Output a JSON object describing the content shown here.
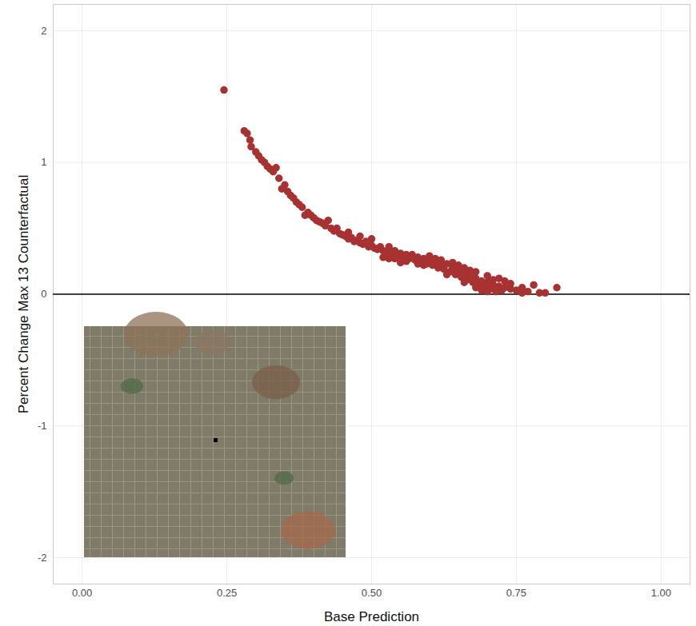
{
  "chart_data": {
    "type": "scatter",
    "x_label": "Base Prediction",
    "y_label": "Percent Change Max 13 Counterfactual",
    "x": [
      0.245,
      0.28,
      0.285,
      0.29,
      0.292,
      0.3,
      0.305,
      0.31,
      0.315,
      0.32,
      0.325,
      0.33,
      0.335,
      0.34,
      0.345,
      0.35,
      0.355,
      0.36,
      0.365,
      0.37,
      0.375,
      0.38,
      0.385,
      0.39,
      0.395,
      0.4,
      0.405,
      0.41,
      0.415,
      0.42,
      0.425,
      0.43,
      0.435,
      0.44,
      0.445,
      0.45,
      0.455,
      0.46,
      0.465,
      0.47,
      0.475,
      0.48,
      0.485,
      0.49,
      0.495,
      0.5,
      0.505,
      0.51,
      0.515,
      0.52,
      0.525,
      0.53,
      0.535,
      0.54,
      0.545,
      0.55,
      0.555,
      0.56,
      0.565,
      0.57,
      0.575,
      0.58,
      0.585,
      0.59,
      0.595,
      0.6,
      0.605,
      0.61,
      0.615,
      0.62,
      0.625,
      0.63,
      0.635,
      0.64,
      0.645,
      0.65,
      0.655,
      0.66,
      0.665,
      0.67,
      0.675,
      0.68,
      0.685,
      0.69,
      0.695,
      0.7,
      0.705,
      0.71,
      0.715,
      0.72,
      0.725,
      0.73,
      0.74,
      0.75,
      0.76,
      0.77,
      0.78,
      0.79,
      0.8,
      0.82,
      0.52,
      0.54,
      0.56,
      0.58,
      0.6,
      0.62,
      0.64,
      0.66,
      0.68,
      0.7,
      0.72,
      0.53,
      0.55,
      0.57,
      0.59,
      0.61,
      0.63,
      0.65,
      0.67,
      0.69,
      0.71,
      0.73,
      0.5,
      0.48,
      0.46,
      0.74,
      0.76,
      0.7,
      0.68,
      0.66
    ],
    "values": [
      1.55,
      1.24,
      1.22,
      1.17,
      1.12,
      1.08,
      1.05,
      1.02,
      1.0,
      0.97,
      0.95,
      0.93,
      0.96,
      0.88,
      0.8,
      0.83,
      0.78,
      0.75,
      0.73,
      0.7,
      0.68,
      0.66,
      0.6,
      0.62,
      0.6,
      0.58,
      0.56,
      0.55,
      0.54,
      0.52,
      0.56,
      0.5,
      0.48,
      0.5,
      0.46,
      0.45,
      0.44,
      0.42,
      0.43,
      0.4,
      0.41,
      0.39,
      0.38,
      0.4,
      0.36,
      0.37,
      0.35,
      0.34,
      0.36,
      0.33,
      0.32,
      0.36,
      0.31,
      0.33,
      0.29,
      0.31,
      0.28,
      0.3,
      0.27,
      0.29,
      0.26,
      0.28,
      0.25,
      0.27,
      0.23,
      0.26,
      0.22,
      0.24,
      0.2,
      0.22,
      0.19,
      0.23,
      0.17,
      0.2,
      0.15,
      0.18,
      0.13,
      0.16,
      0.11,
      0.14,
      0.09,
      0.12,
      0.07,
      0.1,
      0.05,
      0.09,
      0.04,
      0.07,
      0.02,
      0.06,
      0.03,
      0.05,
      0.04,
      0.03,
      0.05,
      0.02,
      0.07,
      0.01,
      0.01,
      0.05,
      0.28,
      0.27,
      0.25,
      0.23,
      0.29,
      0.26,
      0.24,
      0.2,
      0.17,
      0.14,
      0.12,
      0.27,
      0.24,
      0.3,
      0.22,
      0.27,
      0.15,
      0.22,
      0.18,
      0.03,
      0.11,
      0.1,
      0.42,
      0.44,
      0.47,
      0.08,
      0.01,
      0.02,
      0.05,
      0.09
    ],
    "color": "#a83232",
    "hlines": [
      0
    ],
    "xlim": [
      -0.05,
      1.05
    ],
    "xticks": [
      {
        "value": 0,
        "label": "0.00"
      },
      {
        "value": 0.25,
        "label": "0.25"
      },
      {
        "value": 0.5,
        "label": "0.50"
      },
      {
        "value": 0.75,
        "label": "0.75"
      },
      {
        "value": 1,
        "label": "1.00"
      }
    ],
    "ylim": [
      -2.2,
      2.2
    ],
    "yticks": [
      -2,
      -1,
      0,
      1,
      2
    ],
    "grid": true
  }
}
